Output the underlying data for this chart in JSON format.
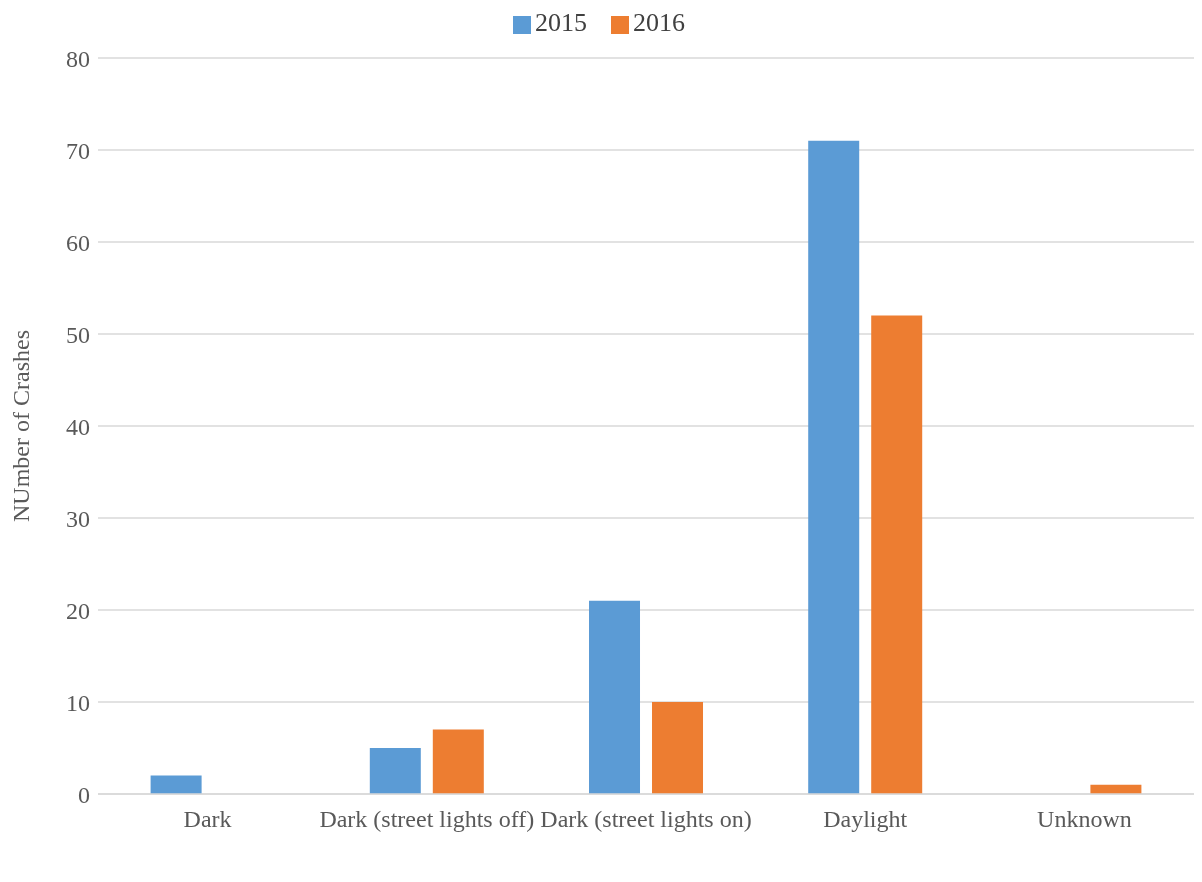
{
  "chart_data": {
    "type": "bar",
    "ylabel": "NUmber of Crashes",
    "categories": [
      "Dark",
      "Dark (street lights off)",
      "Dark (street lights on)",
      "Daylight",
      "Unknown"
    ],
    "series": [
      {
        "name": "2015",
        "color": "#5b9bd5",
        "values": [
          2,
          5,
          21,
          71,
          0
        ]
      },
      {
        "name": "2016",
        "color": "#ed7d31",
        "values": [
          0,
          7,
          10,
          52,
          1
        ]
      }
    ],
    "ylim": [
      0,
      80
    ],
    "yticks": [
      0,
      10,
      20,
      30,
      40,
      50,
      60,
      70,
      80
    ],
    "grid": "y",
    "legend": "top"
  }
}
